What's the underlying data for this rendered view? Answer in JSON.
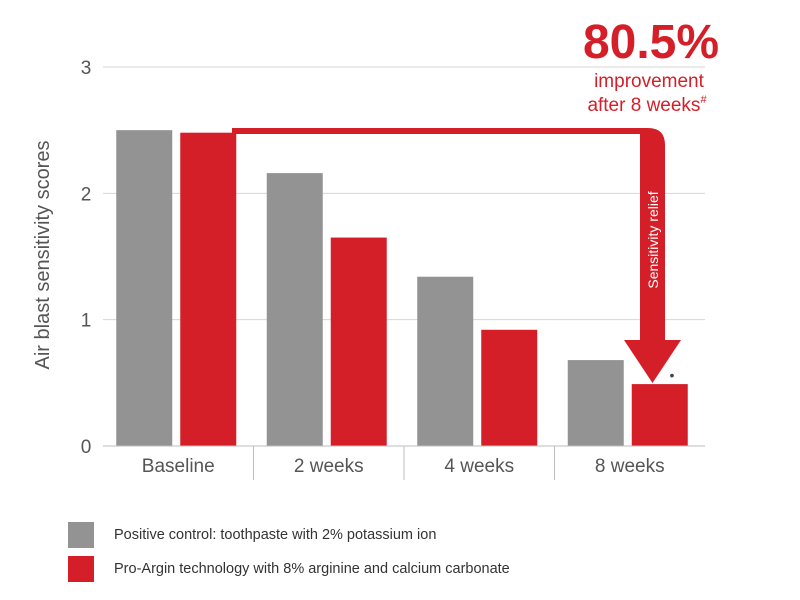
{
  "chart_data": {
    "type": "bar",
    "title": "",
    "xlabel": "",
    "ylabel": "Air blast sensitivity scores",
    "ylim": [
      0,
      3
    ],
    "yticks": [
      0,
      1,
      2,
      3
    ],
    "grid": true,
    "categories": [
      "Baseline",
      "2 weeks",
      "4 weeks",
      "8 weeks"
    ],
    "series": [
      {
        "name": "Positive control: toothpaste with 2% potassium ion",
        "color": "#939393",
        "values": [
          2.5,
          2.16,
          1.34,
          0.68
        ]
      },
      {
        "name": "Pro-Argin technology with 8% arginine and calcium carbonate",
        "color": "#d41f29",
        "values": [
          2.48,
          1.65,
          0.92,
          0.49
        ]
      }
    ],
    "legend_position": "bottom-left",
    "annotation": {
      "value": "80.5%",
      "line1": "improvement",
      "line2": "after 8 weeks",
      "footnote_mark": "#",
      "arrow_label": "Sensitivity relief",
      "significance_mark": "•"
    }
  }
}
